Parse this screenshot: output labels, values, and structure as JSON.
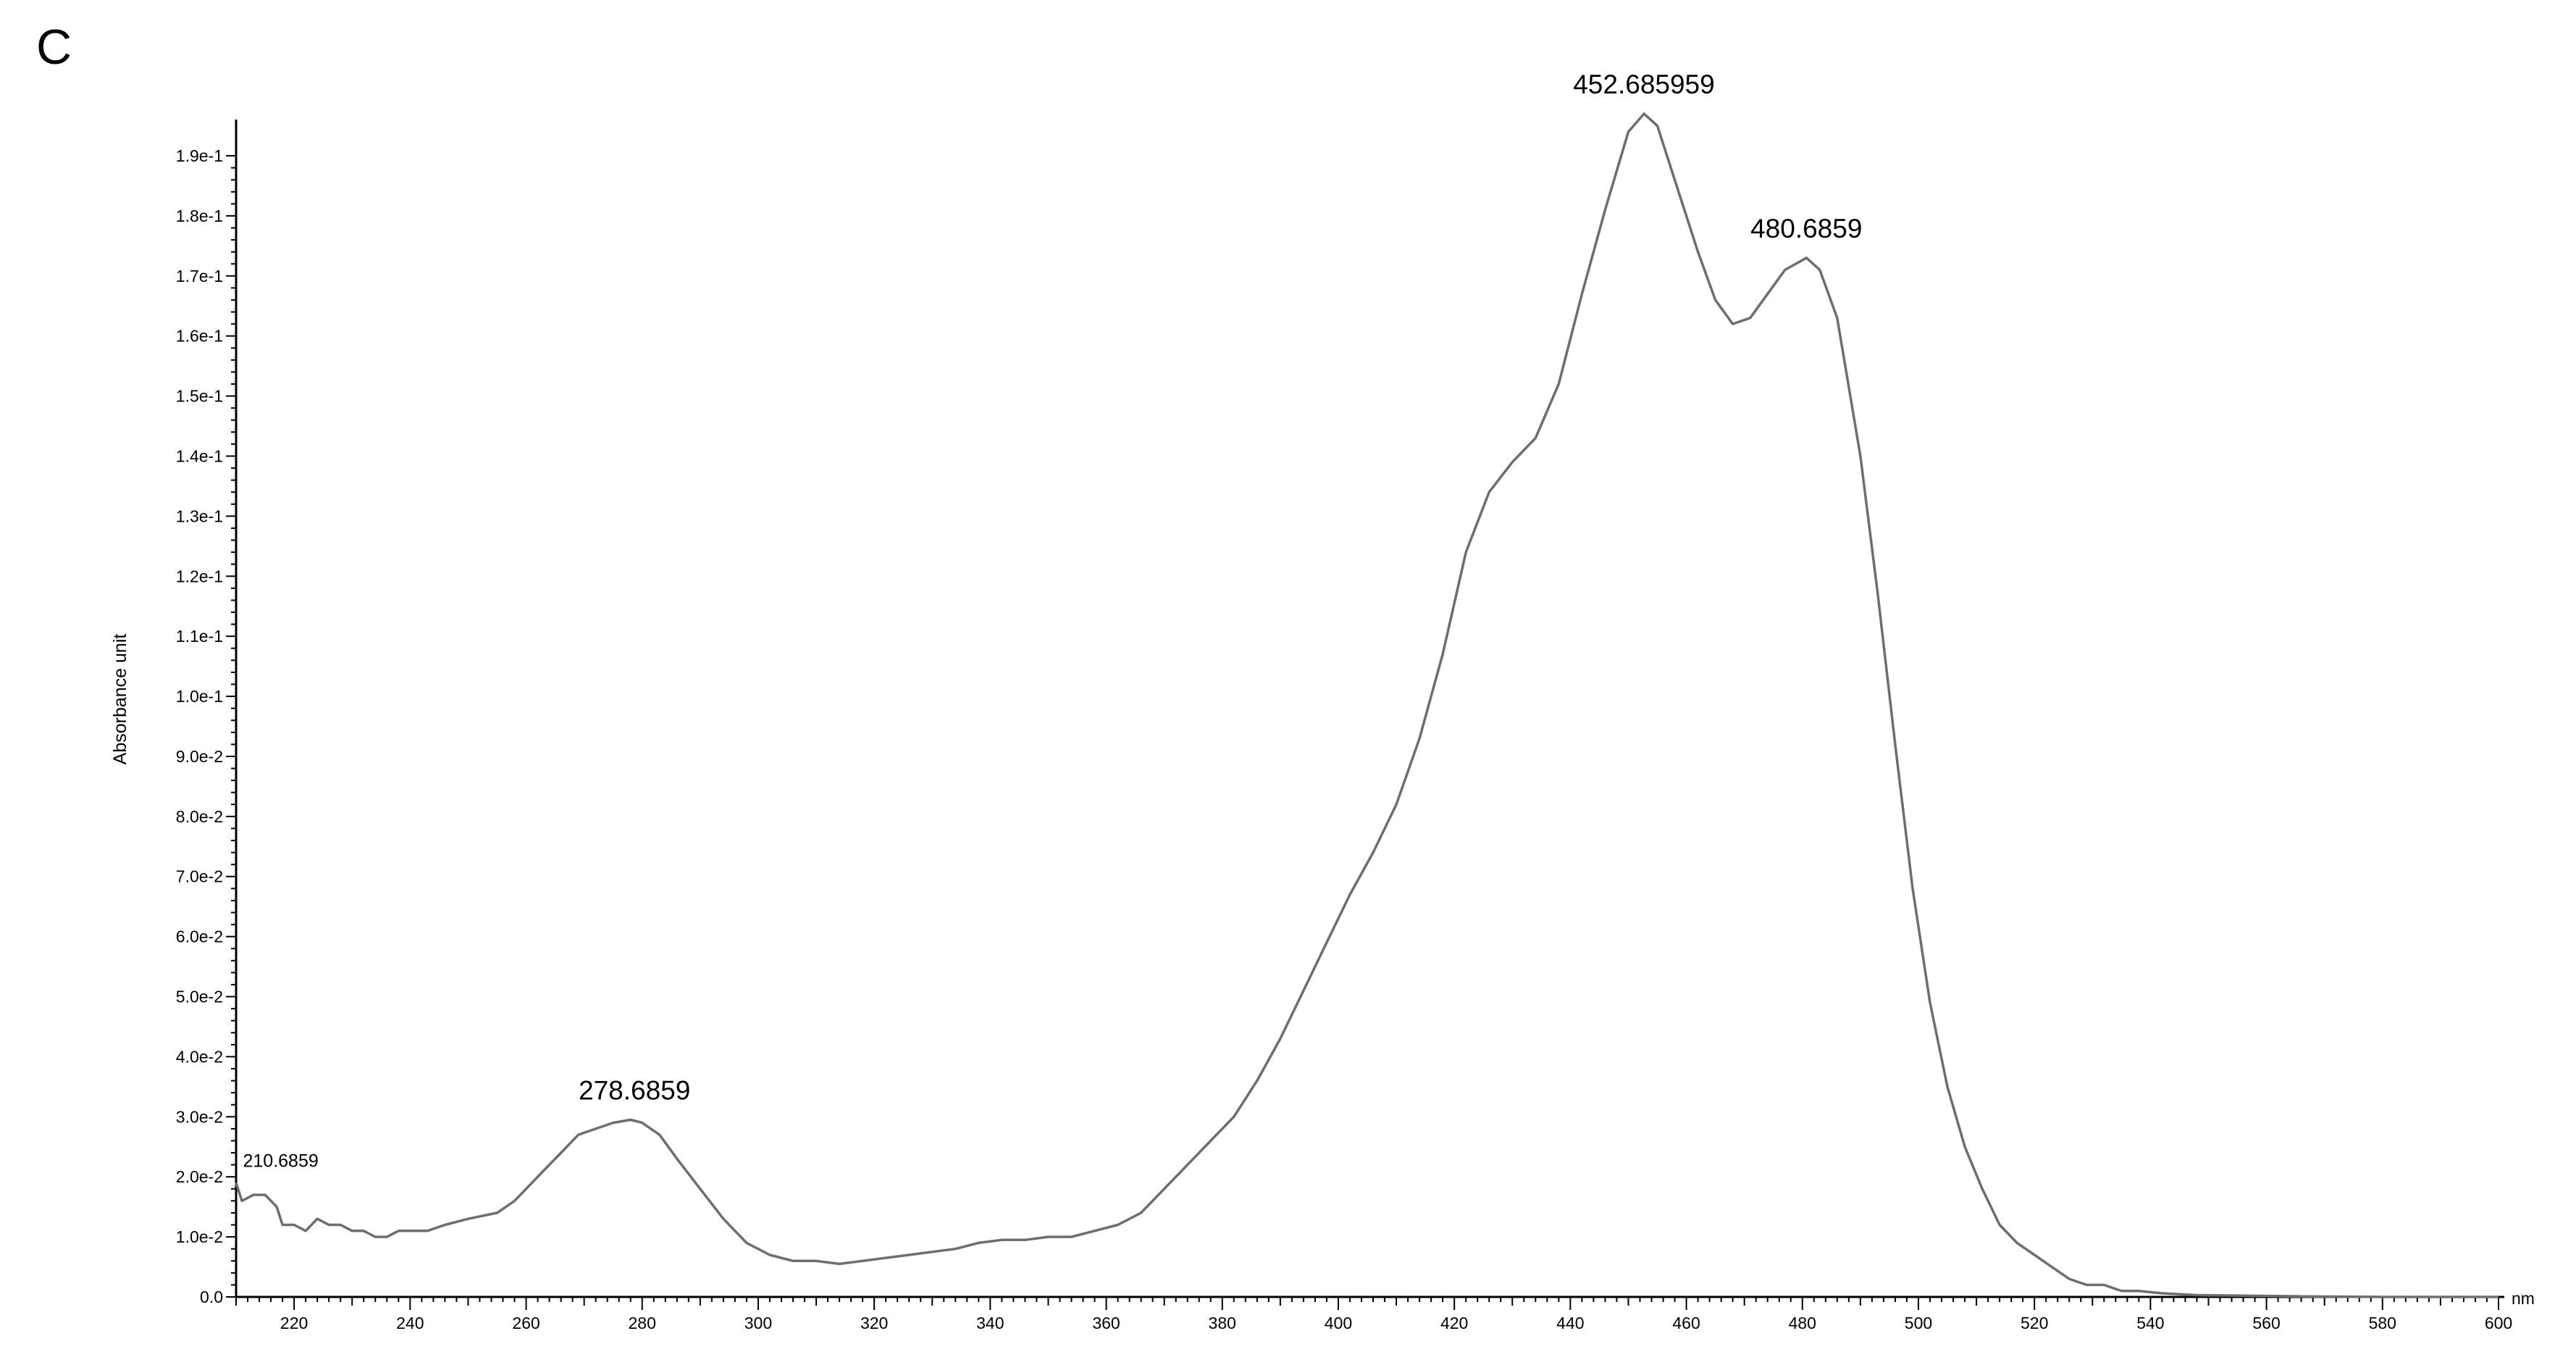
{
  "panel_label": "C",
  "chart_data": {
    "type": "line",
    "title": "",
    "xlabel": "",
    "x_unit": "nm",
    "ylabel": "Absorbance unit",
    "xlim": [
      210,
      600
    ],
    "ylim": [
      0,
      0.197
    ],
    "grid": false,
    "x_ticks": [
      {
        "value": 220,
        "label": "220"
      },
      {
        "value": 240,
        "label": "240"
      },
      {
        "value": 260,
        "label": "260"
      },
      {
        "value": 280,
        "label": "280"
      },
      {
        "value": 300,
        "label": "300"
      },
      {
        "value": 320,
        "label": "320"
      },
      {
        "value": 340,
        "label": "340"
      },
      {
        "value": 360,
        "label": "360"
      },
      {
        "value": 380,
        "label": "380"
      },
      {
        "value": 400,
        "label": "400"
      },
      {
        "value": 420,
        "label": "420"
      },
      {
        "value": 440,
        "label": "440"
      },
      {
        "value": 460,
        "label": "460"
      },
      {
        "value": 480,
        "label": "480"
      },
      {
        "value": 500,
        "label": "500"
      },
      {
        "value": 520,
        "label": "520"
      },
      {
        "value": 540,
        "label": "540"
      },
      {
        "value": 560,
        "label": "560"
      },
      {
        "value": 580,
        "label": "580"
      },
      {
        "value": 600,
        "label": "600"
      }
    ],
    "y_ticks": [
      {
        "value": 0.0,
        "label": "0.0"
      },
      {
        "value": 0.01,
        "label": "1.0e-2"
      },
      {
        "value": 0.02,
        "label": "2.0e-2"
      },
      {
        "value": 0.03,
        "label": "3.0e-2"
      },
      {
        "value": 0.04,
        "label": "4.0e-2"
      },
      {
        "value": 0.05,
        "label": "5.0e-2"
      },
      {
        "value": 0.06,
        "label": "6.0e-2"
      },
      {
        "value": 0.07,
        "label": "7.0e-2"
      },
      {
        "value": 0.08,
        "label": "8.0e-2"
      },
      {
        "value": 0.09,
        "label": "9.0e-2"
      },
      {
        "value": 0.1,
        "label": "1.0e-1"
      },
      {
        "value": 0.11,
        "label": "1.1e-1"
      },
      {
        "value": 0.12,
        "label": "1.2e-1"
      },
      {
        "value": 0.13,
        "label": "1.3e-1"
      },
      {
        "value": 0.14,
        "label": "1.4e-1"
      },
      {
        "value": 0.15,
        "label": "1.5e-1"
      },
      {
        "value": 0.16,
        "label": "1.6e-1"
      },
      {
        "value": 0.17,
        "label": "1.7e-1"
      },
      {
        "value": 0.18,
        "label": "1.8e-1"
      },
      {
        "value": 0.19,
        "label": "1.9e-1"
      }
    ],
    "series": [
      {
        "color": "#6e6e6e",
        "points": [
          [
            210,
            0.019
          ],
          [
            211,
            0.016
          ],
          [
            213,
            0.017
          ],
          [
            215,
            0.017
          ],
          [
            217,
            0.015
          ],
          [
            218,
            0.012
          ],
          [
            220,
            0.012
          ],
          [
            222,
            0.011
          ],
          [
            224,
            0.013
          ],
          [
            226,
            0.012
          ],
          [
            228,
            0.012
          ],
          [
            230,
            0.011
          ],
          [
            232,
            0.011
          ],
          [
            234,
            0.01
          ],
          [
            236,
            0.01
          ],
          [
            238,
            0.011
          ],
          [
            240,
            0.011
          ],
          [
            243,
            0.011
          ],
          [
            246,
            0.012
          ],
          [
            250,
            0.013
          ],
          [
            255,
            0.014
          ],
          [
            258,
            0.016
          ],
          [
            260,
            0.018
          ],
          [
            263,
            0.021
          ],
          [
            266,
            0.024
          ],
          [
            269,
            0.027
          ],
          [
            272,
            0.028
          ],
          [
            275,
            0.029
          ],
          [
            278,
            0.0295
          ],
          [
            280,
            0.029
          ],
          [
            283,
            0.027
          ],
          [
            286,
            0.023
          ],
          [
            290,
            0.018
          ],
          [
            294,
            0.013
          ],
          [
            298,
            0.009
          ],
          [
            302,
            0.007
          ],
          [
            306,
            0.006
          ],
          [
            310,
            0.006
          ],
          [
            314,
            0.0055
          ],
          [
            318,
            0.006
          ],
          [
            322,
            0.0065
          ],
          [
            326,
            0.007
          ],
          [
            330,
            0.0075
          ],
          [
            334,
            0.008
          ],
          [
            338,
            0.009
          ],
          [
            342,
            0.0095
          ],
          [
            346,
            0.0095
          ],
          [
            350,
            0.01
          ],
          [
            354,
            0.01
          ],
          [
            358,
            0.011
          ],
          [
            362,
            0.012
          ],
          [
            366,
            0.014
          ],
          [
            370,
            0.018
          ],
          [
            374,
            0.022
          ],
          [
            378,
            0.026
          ],
          [
            382,
            0.03
          ],
          [
            386,
            0.036
          ],
          [
            390,
            0.043
          ],
          [
            394,
            0.051
          ],
          [
            398,
            0.059
          ],
          [
            402,
            0.067
          ],
          [
            406,
            0.074
          ],
          [
            410,
            0.082
          ],
          [
            414,
            0.093
          ],
          [
            418,
            0.107
          ],
          [
            422,
            0.124
          ],
          [
            426,
            0.134
          ],
          [
            430,
            0.139
          ],
          [
            434,
            0.143
          ],
          [
            438,
            0.152
          ],
          [
            442,
            0.167
          ],
          [
            446,
            0.181
          ],
          [
            450,
            0.194
          ],
          [
            452.7,
            0.197
          ],
          [
            455,
            0.195
          ],
          [
            458,
            0.186
          ],
          [
            462,
            0.174
          ],
          [
            465,
            0.166
          ],
          [
            468,
            0.162
          ],
          [
            471,
            0.163
          ],
          [
            474,
            0.167
          ],
          [
            477,
            0.171
          ],
          [
            480.7,
            0.173
          ],
          [
            483,
            0.171
          ],
          [
            486,
            0.163
          ],
          [
            490,
            0.14
          ],
          [
            493,
            0.117
          ],
          [
            496,
            0.092
          ],
          [
            499,
            0.068
          ],
          [
            502,
            0.049
          ],
          [
            505,
            0.035
          ],
          [
            508,
            0.025
          ],
          [
            511,
            0.018
          ],
          [
            514,
            0.012
          ],
          [
            517,
            0.009
          ],
          [
            520,
            0.007
          ],
          [
            523,
            0.005
          ],
          [
            526,
            0.003
          ],
          [
            529,
            0.002
          ],
          [
            532,
            0.002
          ],
          [
            535,
            0.001
          ],
          [
            538,
            0.001
          ],
          [
            542,
            0.0006
          ],
          [
            548,
            0.0003
          ],
          [
            556,
            0.0002
          ],
          [
            566,
            0.0001
          ],
          [
            580,
            0.0
          ],
          [
            600,
            0.0
          ]
        ]
      }
    ],
    "annotations": [
      {
        "x": 210.6859,
        "y": 0.019,
        "text": "210.6859",
        "size": "small"
      },
      {
        "x": 278.6859,
        "y": 0.0295,
        "text": "278.6859",
        "size": "normal"
      },
      {
        "x": 452.685959,
        "y": 0.197,
        "text": "452.685959",
        "size": "normal"
      },
      {
        "x": 480.6859,
        "y": 0.173,
        "text": "480.6859",
        "size": "normal"
      }
    ]
  }
}
